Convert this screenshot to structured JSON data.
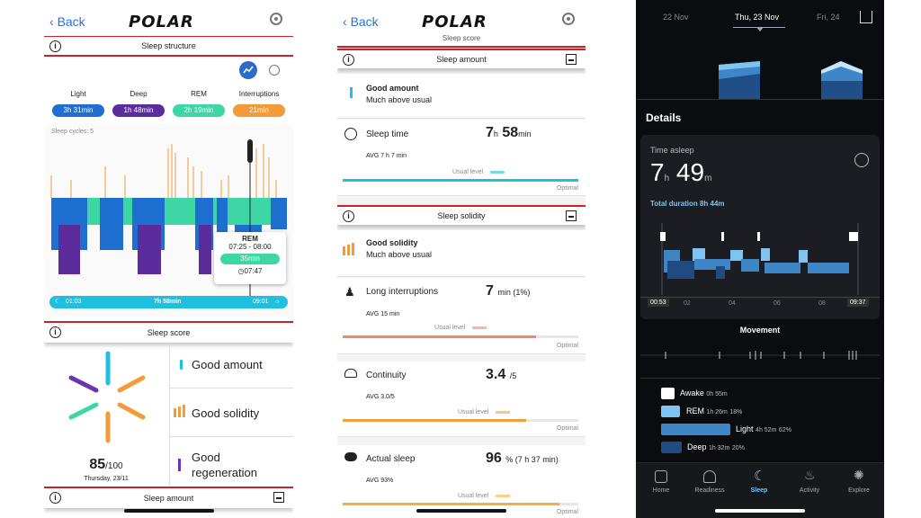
{
  "panel1": {
    "back_label": "Back",
    "logo": "POLAR",
    "section_sleep_structure": "Sleep structure",
    "stages": [
      {
        "label": "Light",
        "value": "3h 31min",
        "color": "#1e6fd0"
      },
      {
        "label": "Deep",
        "value": "1h 48min",
        "color": "#5b2c9c"
      },
      {
        "label": "REM",
        "value": "2h 19min",
        "color": "#3fd6a6"
      },
      {
        "label": "Interruptions",
        "value": "21min",
        "color": "#f39a3b"
      }
    ],
    "sleep_cycles": "Sleep cycles: 5",
    "tooltip": {
      "stage": "REM",
      "time": "07:25 - 08:00",
      "duration": "35min",
      "clock": "07:47"
    },
    "timeline": {
      "start": "01:03",
      "total": "7h 58min",
      "end": "09:01"
    },
    "section_sleep_score": "Sleep score",
    "score": "85",
    "score_max": "/100",
    "date": "Thursday, 23/11",
    "score_items": [
      "Good amount",
      "Good solidity",
      "Good regeneration"
    ],
    "section_sleep_amount": "Sleep amount"
  },
  "panel2": {
    "back_label": "Back",
    "logo": "POLAR",
    "section_sleep_score": "Sleep score",
    "section_sleep_amount": "Sleep amount",
    "amount_title": "Good amount",
    "amount_sub": "Much above usual",
    "sleep_time_label": "Sleep time",
    "sleep_time_h": "7",
    "sleep_time_m": "58",
    "unit_h": "h",
    "unit_min": "min",
    "sleep_time_avg": "AVG 7 h 7 min",
    "usual_level": "Usual level",
    "optimal": "Optimal",
    "section_sleep_solidity": "Sleep solidity",
    "solidity_title": "Good solidity",
    "solidity_sub": "Much above usual",
    "long_int_label": "Long interruptions",
    "long_int_value": "7",
    "long_int_unit": "min (1%)",
    "long_int_avg": "AVG 15 min",
    "continuity_label": "Continuity",
    "continuity_value": "3.4",
    "continuity_unit": "/5",
    "continuity_avg": "AVG 3.0/5",
    "actual_label": "Actual sleep",
    "actual_value": "96",
    "actual_unit": "% (7 h 37 min)",
    "actual_avg": "AVG 93%",
    "bars": {
      "sleep_time": 1.0,
      "long_int": 0.82,
      "continuity": 0.78,
      "actual": 0.92
    }
  },
  "panel3": {
    "dates": [
      "22 Nov",
      "Thu, 23 Nov",
      "Fri, 24"
    ],
    "details": "Details",
    "time_asleep_label": "Time asleep",
    "time_h": "7",
    "unit_h": "h",
    "time_m": "49",
    "unit_m": "m",
    "total_duration": "Total duration 8h 44m",
    "axis_start": "00:53",
    "axis_ticks": [
      "02",
      "04",
      "06",
      "08"
    ],
    "axis_end": "09:37",
    "movement": "Movement",
    "legend": [
      {
        "name": "Awake",
        "value": "0h 55m",
        "pct": "",
        "color": "#ffffff"
      },
      {
        "name": "REM",
        "value": "1h 26m",
        "pct": "18%",
        "color": "#7fc4f0"
      },
      {
        "name": "Light",
        "value": "4h 52m",
        "pct": "62%",
        "color": "#3f86c6"
      },
      {
        "name": "Deep",
        "value": "1h 32m",
        "pct": "20%",
        "color": "#214b80"
      }
    ],
    "nav": [
      "Home",
      "Readiness",
      "Sleep",
      "Activity",
      "Explore"
    ]
  }
}
